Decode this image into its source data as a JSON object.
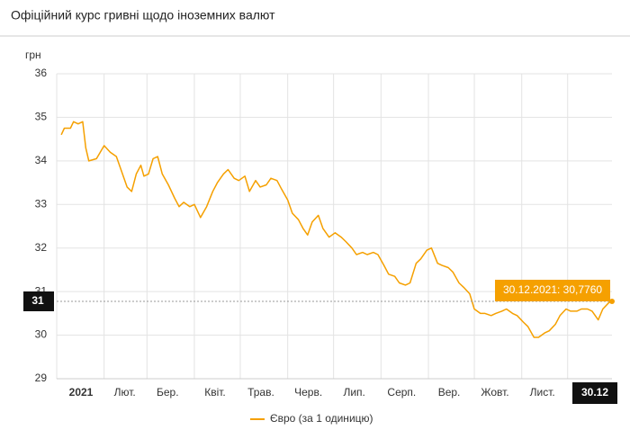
{
  "chart_data": {
    "type": "line",
    "title": "Офіційний курс гривні щодо іноземних валют",
    "y_label": "грн",
    "xlim": [
      "2021-01-01",
      "2021-12-30"
    ],
    "xticks": [
      {
        "value": "2021-01-01",
        "label": "2021"
      },
      {
        "value": "2021-02-01",
        "label": "Лют."
      },
      {
        "value": "2021-03-01",
        "label": "Бер."
      },
      {
        "value": "2021-04-01",
        "label": "Квіт."
      },
      {
        "value": "2021-05-01",
        "label": "Трав."
      },
      {
        "value": "2021-06-01",
        "label": "Черв."
      },
      {
        "value": "2021-07-01",
        "label": "Лип."
      },
      {
        "value": "2021-08-01",
        "label": "Серп."
      },
      {
        "value": "2021-09-01",
        "label": "Вер."
      },
      {
        "value": "2021-10-01",
        "label": "Жовт."
      },
      {
        "value": "2021-11-01",
        "label": "Лист."
      },
      {
        "value": "2021-12-01",
        "label": ""
      }
    ],
    "ylim": [
      29,
      36
    ],
    "yticks": [
      29,
      30,
      31,
      32,
      33,
      34,
      35,
      36
    ],
    "grid": true,
    "legend": "bottom",
    "crosshair": {
      "x": "2021-12-30",
      "x_label": "30.12",
      "y": 30.776,
      "y_label": "31",
      "tooltip": "30.12.2021: 30,7760"
    },
    "x": [
      "2021-01-04",
      "2021-01-06",
      "2021-01-10",
      "2021-01-12",
      "2021-01-15",
      "2021-01-18",
      "2021-01-20",
      "2021-01-22",
      "2021-01-27",
      "2021-02-01",
      "2021-02-05",
      "2021-02-09",
      "2021-02-12",
      "2021-02-16",
      "2021-02-19",
      "2021-02-22",
      "2021-02-25",
      "2021-02-27",
      "2021-03-02",
      "2021-03-05",
      "2021-03-08",
      "2021-03-11",
      "2021-03-15",
      "2021-03-19",
      "2021-03-22",
      "2021-03-25",
      "2021-03-29",
      "2021-04-01",
      "2021-04-05",
      "2021-04-09",
      "2021-04-13",
      "2021-04-16",
      "2021-04-20",
      "2021-04-23",
      "2021-04-27",
      "2021-04-30",
      "2021-05-04",
      "2021-05-07",
      "2021-05-11",
      "2021-05-14",
      "2021-05-18",
      "2021-05-21",
      "2021-05-25",
      "2021-05-28",
      "2021-06-01",
      "2021-06-04",
      "2021-06-08",
      "2021-06-11",
      "2021-06-14",
      "2021-06-17",
      "2021-06-21",
      "2021-06-24",
      "2021-06-28",
      "2021-07-02",
      "2021-07-06",
      "2021-07-09",
      "2021-07-13",
      "2021-07-16",
      "2021-07-20",
      "2021-07-23",
      "2021-07-27",
      "2021-07-30",
      "2021-08-03",
      "2021-08-06",
      "2021-08-10",
      "2021-08-13",
      "2021-08-17",
      "2021-08-20",
      "2021-08-24",
      "2021-08-27",
      "2021-08-31",
      "2021-09-03",
      "2021-09-07",
      "2021-09-10",
      "2021-09-14",
      "2021-09-17",
      "2021-09-21",
      "2021-09-24",
      "2021-09-28",
      "2021-10-01",
      "2021-10-05",
      "2021-10-08",
      "2021-10-12",
      "2021-10-15",
      "2021-10-19",
      "2021-10-22",
      "2021-10-26",
      "2021-10-29",
      "2021-11-02",
      "2021-11-05",
      "2021-11-09",
      "2021-11-12",
      "2021-11-16",
      "2021-11-19",
      "2021-11-23",
      "2021-11-26",
      "2021-11-30",
      "2021-12-03",
      "2021-12-07",
      "2021-12-10",
      "2021-12-14",
      "2021-12-17",
      "2021-12-21",
      "2021-12-24",
      "2021-12-28",
      "2021-12-30"
    ],
    "series": [
      {
        "name": "Євро (за 1 одиницю)",
        "color": "#f5a000",
        "values": [
          34.6,
          34.75,
          34.75,
          34.9,
          34.85,
          34.9,
          34.3,
          34.0,
          34.05,
          34.35,
          34.2,
          34.1,
          33.8,
          33.4,
          33.3,
          33.7,
          33.9,
          33.65,
          33.7,
          34.05,
          34.1,
          33.7,
          33.45,
          33.15,
          32.95,
          33.05,
          32.95,
          33.0,
          32.7,
          32.95,
          33.3,
          33.5,
          33.7,
          33.8,
          33.6,
          33.55,
          33.65,
          33.3,
          33.55,
          33.4,
          33.45,
          33.6,
          33.55,
          33.35,
          33.1,
          32.8,
          32.65,
          32.45,
          32.3,
          32.6,
          32.75,
          32.45,
          32.25,
          32.35,
          32.25,
          32.15,
          32.0,
          31.85,
          31.9,
          31.85,
          31.9,
          31.85,
          31.6,
          31.4,
          31.35,
          31.2,
          31.15,
          31.2,
          31.65,
          31.75,
          31.95,
          32.0,
          31.65,
          31.6,
          31.55,
          31.45,
          31.2,
          31.1,
          30.95,
          30.6,
          30.5,
          30.5,
          30.45,
          30.5,
          30.55,
          30.6,
          30.5,
          30.45,
          30.3,
          30.2,
          29.95,
          29.95,
          30.05,
          30.1,
          30.25,
          30.45,
          30.6,
          30.55,
          30.55,
          30.6,
          30.6,
          30.55,
          30.35,
          30.6,
          30.75,
          30.776
        ]
      }
    ]
  }
}
